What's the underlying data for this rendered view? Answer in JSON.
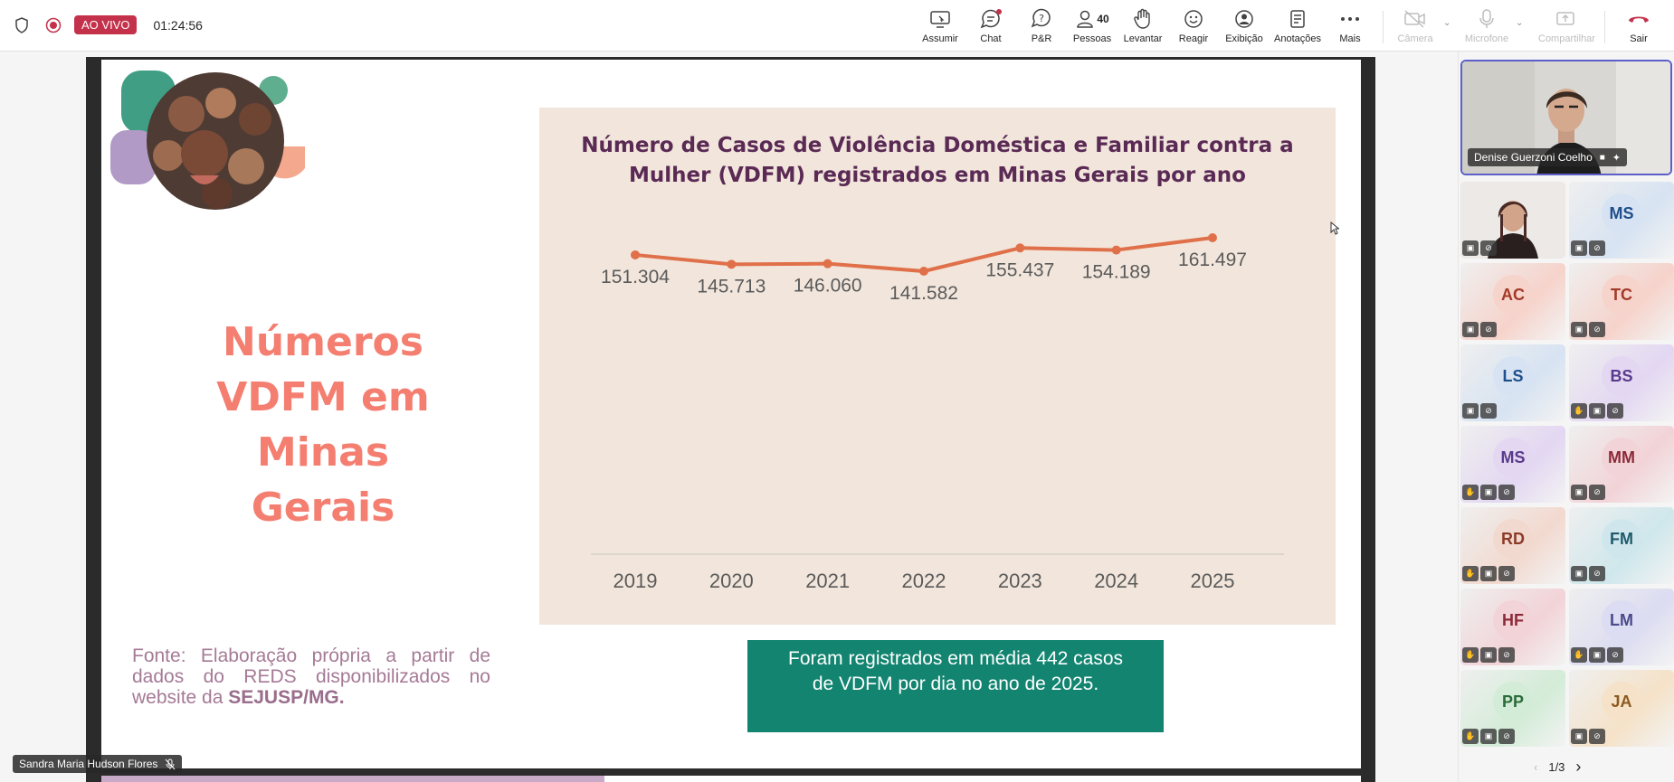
{
  "topbar": {
    "live_label": "AO VIVO",
    "timer": "01:24:56",
    "buttons": [
      {
        "label": "Assumir",
        "icon": "screen-share-icon"
      },
      {
        "label": "Chat",
        "icon": "chat-icon"
      },
      {
        "label": "P&R",
        "icon": "qna-icon"
      },
      {
        "label": "Pessoas",
        "icon": "people-icon",
        "count": "40"
      },
      {
        "label": "Levantar",
        "icon": "raise-hand-icon"
      },
      {
        "label": "Reagir",
        "icon": "smiley-icon"
      },
      {
        "label": "Exibição",
        "icon": "view-icon"
      },
      {
        "label": "Anotações",
        "icon": "notes-icon"
      },
      {
        "label": "Mais",
        "icon": "more-icon"
      },
      {
        "label": "Câmera",
        "icon": "camera-off-icon"
      },
      {
        "label": "Microfone",
        "icon": "mic-icon"
      },
      {
        "label": "Compartilhar",
        "icon": "share-icon"
      },
      {
        "label": "Sair",
        "icon": "leave-call-icon"
      }
    ]
  },
  "slide": {
    "title_lines": [
      "Números",
      "VDFM em",
      "Minas",
      "Gerais"
    ],
    "source_prefix": "Fonte: Elaboração própria a partir de dados do REDS disponibilizados no website da ",
    "source_bold": "SEJUSP/MG.",
    "note": "Foram registrados em média 442 casos de VDFM por dia no ano de 2025."
  },
  "chart_data": {
    "type": "line",
    "title": "Número de Casos de Violência Doméstica e Familiar contra a Mulher (VDFM) registrados em Minas Gerais por ano",
    "x": [
      "2019",
      "2020",
      "2021",
      "2022",
      "2023",
      "2024",
      "2025"
    ],
    "values": [
      151304,
      145713,
      146060,
      141582,
      155437,
      154189,
      161497
    ],
    "value_labels": [
      "151.304",
      "145.713",
      "146.060",
      "141.582",
      "155.437",
      "154.189",
      "161.497"
    ],
    "line_color": "#e0704a",
    "grid": false
  },
  "presenter": {
    "name": "Sandra Maria Hudson Flores"
  },
  "participants": {
    "featured": {
      "name": "Denise Guerzoni Coelho"
    },
    "tiles": [
      {
        "initials": "",
        "video": true
      },
      {
        "initials": "MS",
        "color": "#1f4e8c",
        "bg": "#d7e3f2"
      },
      {
        "initials": "AC",
        "color": "#a33a28",
        "bg": "#f6d3cb"
      },
      {
        "initials": "TC",
        "color": "#a33a28",
        "bg": "#f6d3cb"
      },
      {
        "initials": "LS",
        "color": "#1f4e8c",
        "bg": "#d7e3f2"
      },
      {
        "initials": "BS",
        "color": "#5a3a8c",
        "bg": "#e3d7f2"
      },
      {
        "initials": "MS",
        "color": "#5a3a8c",
        "bg": "#e3d7f2"
      },
      {
        "initials": "MM",
        "color": "#8c2a3a",
        "bg": "#f2d3d7"
      },
      {
        "initials": "RD",
        "color": "#8c3a28",
        "bg": "#f2d9cf"
      },
      {
        "initials": "FM",
        "color": "#1f5a6c",
        "bg": "#cfe7ec"
      },
      {
        "initials": "HF",
        "color": "#8c2a3a",
        "bg": "#f2d3d7"
      },
      {
        "initials": "LM",
        "color": "#4a4a8c",
        "bg": "#dcdcf2"
      },
      {
        "initials": "PP",
        "color": "#2a6c3a",
        "bg": "#d3ecd7"
      },
      {
        "initials": "JA",
        "color": "#8c5a1f",
        "bg": "#f5e2c8"
      }
    ],
    "pager": "1/3"
  }
}
